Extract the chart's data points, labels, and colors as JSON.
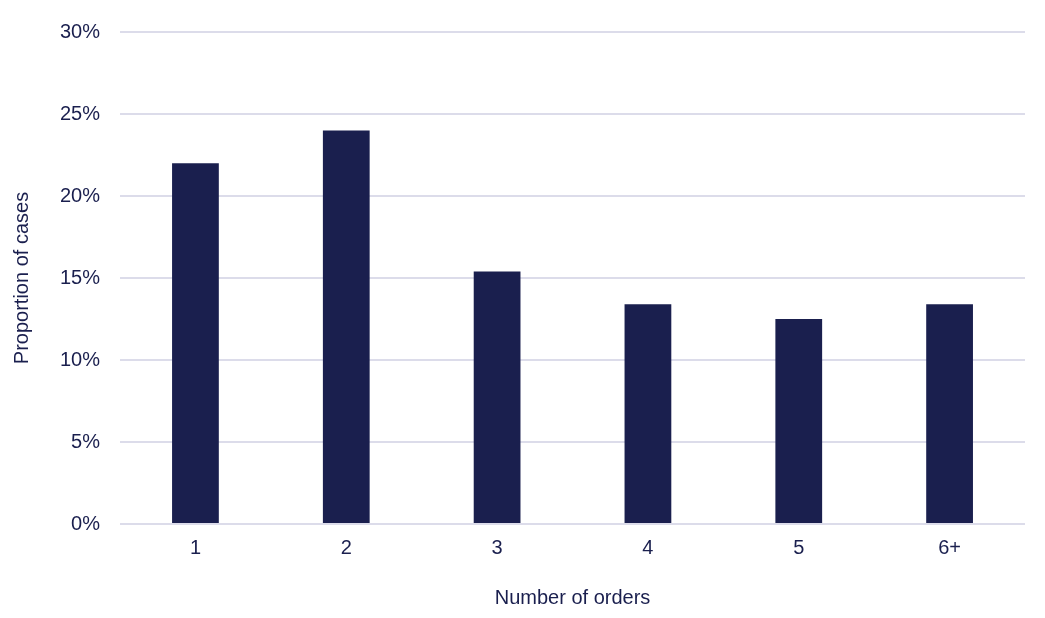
{
  "chart_data": {
    "type": "bar",
    "xlabel": "Number of orders",
    "ylabel": "Proportion of cases",
    "categories": [
      "1",
      "2",
      "3",
      "4",
      "5",
      "6+"
    ],
    "values": [
      22,
      24,
      15.4,
      13.4,
      12.5,
      13.4
    ],
    "color": "#1a1f4e",
    "ylim": [
      0,
      30
    ],
    "yticks": [
      {
        "value": 0,
        "label": "0%"
      },
      {
        "value": 5,
        "label": "5%"
      },
      {
        "value": 10,
        "label": "10%"
      },
      {
        "value": 15,
        "label": "15%"
      },
      {
        "value": 20,
        "label": "20%"
      },
      {
        "value": 25,
        "label": "25%"
      },
      {
        "value": 30,
        "label": "30%"
      }
    ],
    "grid": "y",
    "legend": false
  }
}
